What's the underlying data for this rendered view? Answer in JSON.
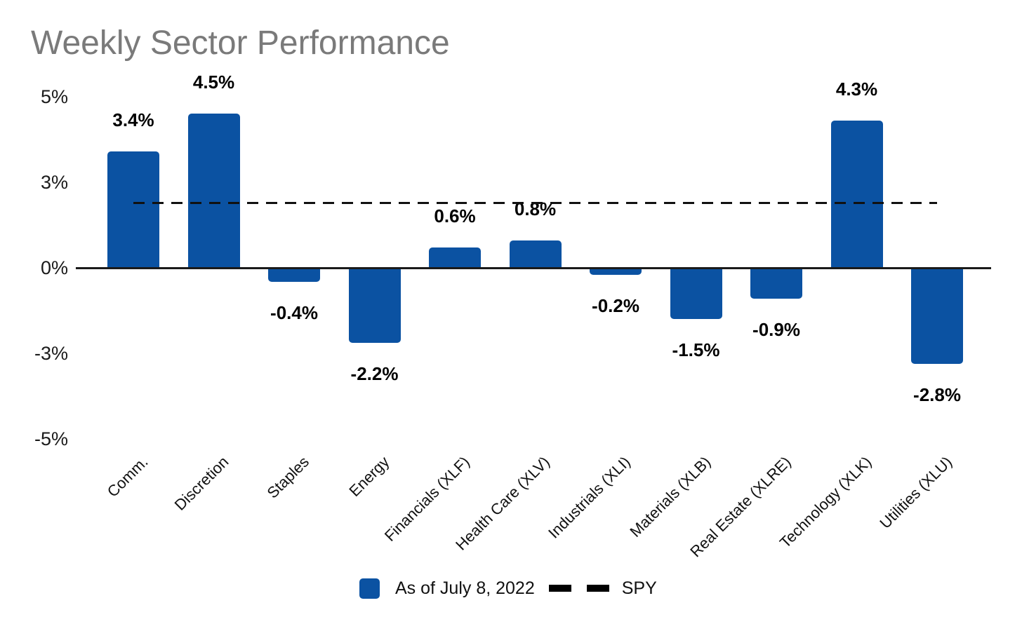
{
  "title": "Weekly Sector Performance",
  "colors": {
    "bar": "#0b52a2",
    "spy_line": "#111111",
    "title_text": "#7a7a7a",
    "axis": "#1a1a1a",
    "label_text": "#000000"
  },
  "chart_data": {
    "type": "bar",
    "title": "Weekly Sector Performance",
    "categories": [
      "Comm.",
      "Discretion",
      "Staples",
      "Energy",
      "Financials (XLF)",
      "Health Care (XLV)",
      "Industrials (XLI)",
      "Materials (XLB)",
      "Real Estate (XLRE)",
      "Technology (XLK)",
      "Utilities (XLU)"
    ],
    "series": [
      {
        "name": "As of July 8, 2022",
        "type": "bar",
        "color": "#0b52a2",
        "values": [
          3.4,
          4.5,
          -0.4,
          -2.2,
          0.6,
          0.8,
          -0.2,
          -1.5,
          -0.9,
          4.3,
          -2.8
        ],
        "value_labels": [
          "3.4%",
          "4.5%",
          "-0.4%",
          "-2.2%",
          "0.6%",
          "0.8%",
          "-0.2%",
          "-1.5%",
          "-0.9%",
          "4.3%",
          "-2.8%"
        ]
      },
      {
        "name": "SPY",
        "type": "line",
        "style": "dashed",
        "color": "#111111",
        "value": 1.9
      }
    ],
    "xlabel": "",
    "ylabel": "",
    "ylim": [
      -5,
      5
    ],
    "y_ticks": [
      {
        "label": "5%",
        "value": 5
      },
      {
        "label": "3%",
        "value": 2.5
      },
      {
        "label": "0%",
        "value": 0
      },
      {
        "label": "-3%",
        "value": -2.5
      },
      {
        "label": "-5%",
        "value": -5
      }
    ],
    "grid": false,
    "legend_position": "bottom"
  },
  "legend": {
    "bar_label": "As of July 8, 2022",
    "line_label": "SPY"
  }
}
